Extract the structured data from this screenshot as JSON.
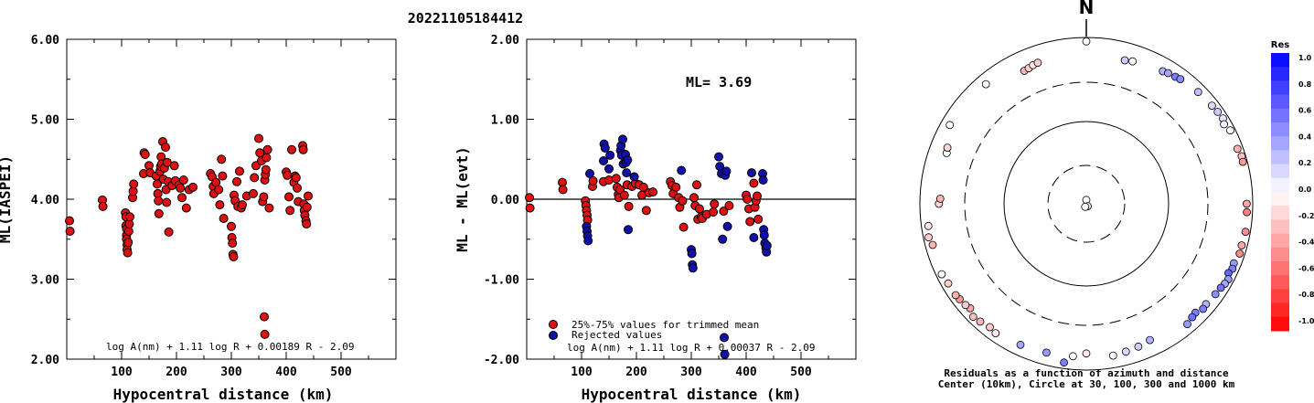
{
  "figure_title": "20221105184412",
  "chart_data": [
    {
      "type": "scatter",
      "panel": "left",
      "ylabel": "ML(IASPEI)",
      "xlabel": "Hypocentral distance (km)",
      "xlim": [
        0,
        600
      ],
      "ylim": [
        2.0,
        6.0
      ],
      "xticks": [
        "100",
        "200",
        "300",
        "400",
        "500"
      ],
      "yticks": [
        "2.00",
        "3.00",
        "4.00",
        "5.00",
        "6.00"
      ],
      "formula": "log A(nm) + 1.11 log R + 0.00189 R - 2.09",
      "color": "#dd1111",
      "points": [
        [
          5,
          3.73
        ],
        [
          6,
          3.6
        ],
        [
          65,
          3.99
        ],
        [
          66,
          3.91
        ],
        [
          107,
          3.83
        ],
        [
          108,
          3.78
        ],
        [
          108,
          3.67
        ],
        [
          109,
          3.63
        ],
        [
          109,
          3.55
        ],
        [
          109,
          3.5
        ],
        [
          110,
          3.43
        ],
        [
          110,
          3.37
        ],
        [
          111,
          3.33
        ],
        [
          112,
          3.46
        ],
        [
          113,
          3.6
        ],
        [
          114,
          3.69
        ],
        [
          115,
          3.78
        ],
        [
          120,
          4.02
        ],
        [
          121,
          4.1
        ],
        [
          122,
          4.19
        ],
        [
          140,
          4.32
        ],
        [
          141,
          4.58
        ],
        [
          143,
          4.56
        ],
        [
          150,
          4.42
        ],
        [
          152,
          4.33
        ],
        [
          163,
          4.29
        ],
        [
          165,
          4.19
        ],
        [
          166,
          4.07
        ],
        [
          167,
          3.98
        ],
        [
          168,
          3.82
        ],
        [
          170,
          4.35
        ],
        [
          171,
          4.41
        ],
        [
          172,
          4.53
        ],
        [
          173,
          4.44
        ],
        [
          175,
          4.72
        ],
        [
          176,
          4.25
        ],
        [
          178,
          4.39
        ],
        [
          180,
          4.65
        ],
        [
          181,
          4.12
        ],
        [
          182,
          3.96
        ],
        [
          183,
          4.46
        ],
        [
          185,
          4.22
        ],
        [
          186,
          3.59
        ],
        [
          192,
          4.17
        ],
        [
          196,
          4.42
        ],
        [
          198,
          4.23
        ],
        [
          205,
          4.18
        ],
        [
          207,
          4.14
        ],
        [
          210,
          4.02
        ],
        [
          213,
          4.24
        ],
        [
          218,
          3.89
        ],
        [
          223,
          4.12
        ],
        [
          230,
          4.15
        ],
        [
          262,
          4.32
        ],
        [
          265,
          4.28
        ],
        [
          267,
          4.16
        ],
        [
          268,
          4.07
        ],
        [
          272,
          4.21
        ],
        [
          277,
          4.12
        ],
        [
          279,
          3.93
        ],
        [
          282,
          4.5
        ],
        [
          284,
          4.29
        ],
        [
          286,
          3.76
        ],
        [
          300,
          3.66
        ],
        [
          301,
          3.52
        ],
        [
          302,
          3.45
        ],
        [
          303,
          3.31
        ],
        [
          304,
          3.28
        ],
        [
          305,
          4.05
        ],
        [
          307,
          3.98
        ],
        [
          310,
          4.22
        ],
        [
          312,
          3.91
        ],
        [
          315,
          4.35
        ],
        [
          318,
          3.89
        ],
        [
          320,
          3.93
        ],
        [
          328,
          4.04
        ],
        [
          340,
          4.07
        ],
        [
          342,
          4.27
        ],
        [
          345,
          4.42
        ],
        [
          350,
          4.76
        ],
        [
          352,
          4.58
        ],
        [
          355,
          4.48
        ],
        [
          357,
          3.97
        ],
        [
          359,
          4.03
        ],
        [
          361,
          4.24
        ],
        [
          362,
          4.31
        ],
        [
          363,
          4.37
        ],
        [
          364,
          4.52
        ],
        [
          366,
          4.62
        ],
        [
          369,
          3.89
        ],
        [
          360,
          2.53
        ],
        [
          361,
          2.31
        ],
        [
          400,
          4.34
        ],
        [
          402,
          4.3
        ],
        [
          405,
          4.03
        ],
        [
          407,
          3.86
        ],
        [
          410,
          4.62
        ],
        [
          414,
          4.21
        ],
        [
          416,
          4.29
        ],
        [
          418,
          4.27
        ],
        [
          420,
          4.14
        ],
        [
          422,
          3.97
        ],
        [
          430,
          4.67
        ],
        [
          431,
          4.62
        ],
        [
          432,
          3.94
        ],
        [
          433,
          3.86
        ],
        [
          434,
          3.8
        ],
        [
          436,
          3.73
        ],
        [
          437,
          3.69
        ],
        [
          438,
          3.9
        ],
        [
          440,
          4.04
        ]
      ]
    },
    {
      "type": "scatter",
      "panel": "middle",
      "ylabel": "ML - ML(evt)",
      "xlabel": "Hypocentral distance (km)",
      "xlim": [
        0,
        600
      ],
      "ylim": [
        -2.0,
        2.0
      ],
      "xticks": [
        "100",
        "200",
        "300",
        "400",
        "500"
      ],
      "yticks": [
        "-2.00",
        "-1.00",
        "0.00",
        "1.00",
        "2.00"
      ],
      "annotation": "ML= 3.69",
      "formula": "log A(nm) + 1.11 log R + 0.00037 R - 2.09",
      "legend": [
        {
          "label": "25%-75% values for trimmed mean",
          "color": "#dd1111"
        },
        {
          "label": "Rejected values",
          "color": "#1111aa"
        }
      ],
      "series": [
        {
          "name": "25%-75% values for trimmed mean",
          "color": "#dd1111",
          "points": [
            [
              5,
              0.02
            ],
            [
              6,
              -0.11
            ],
            [
              65,
              0.21
            ],
            [
              66,
              0.12
            ],
            [
              107,
              -0.02
            ],
            [
              108,
              -0.08
            ],
            [
              109,
              -0.14
            ],
            [
              110,
              -0.2
            ],
            [
              111,
              -0.26
            ],
            [
              120,
              0.16
            ],
            [
              121,
              0.23
            ],
            [
              140,
              0.22
            ],
            [
              150,
              0.24
            ],
            [
              163,
              0.26
            ],
            [
              165,
              0.15
            ],
            [
              167,
              0.06
            ],
            [
              168,
              0.02
            ],
            [
              170,
              0.12
            ],
            [
              178,
              0.05
            ],
            [
              183,
              0.18
            ],
            [
              186,
              -0.09
            ],
            [
              192,
              0.16
            ],
            [
              198,
              0.2
            ],
            [
              205,
              0.18
            ],
            [
              210,
              0.05
            ],
            [
              213,
              0.15
            ],
            [
              218,
              -0.14
            ],
            [
              223,
              0.08
            ],
            [
              230,
              0.09
            ],
            [
              262,
              0.22
            ],
            [
              265,
              0.17
            ],
            [
              267,
              0.07
            ],
            [
              272,
              0.15
            ],
            [
              277,
              0.02
            ],
            [
              279,
              -0.1
            ],
            [
              284,
              -0.02
            ],
            [
              286,
              -0.35
            ],
            [
              305,
              0.02
            ],
            [
              307,
              -0.08
            ],
            [
              310,
              0.18
            ],
            [
              312,
              -0.25
            ],
            [
              315,
              -0.12
            ],
            [
              318,
              -0.22
            ],
            [
              320,
              -0.24
            ],
            [
              328,
              -0.19
            ],
            [
              340,
              -0.16
            ],
            [
              342,
              -0.06
            ],
            [
              359,
              -0.15
            ],
            [
              369,
              -0.08
            ],
            [
              400,
              0.05
            ],
            [
              402,
              0.0
            ],
            [
              405,
              -0.12
            ],
            [
              407,
              -0.28
            ],
            [
              414,
              0.2
            ],
            [
              416,
              -0.1
            ],
            [
              418,
              -0.02
            ],
            [
              420,
              0.04
            ],
            [
              422,
              -0.25
            ]
          ]
        },
        {
          "name": "Rejected values",
          "color": "#1111aa",
          "points": [
            [
              109,
              -0.34
            ],
            [
              110,
              -0.4
            ],
            [
              111,
              -0.46
            ],
            [
              112,
              -0.52
            ],
            [
              115,
              0.32
            ],
            [
              140,
              0.48
            ],
            [
              141,
              0.69
            ],
            [
              143,
              0.64
            ],
            [
              150,
              0.38
            ],
            [
              152,
              0.55
            ],
            [
              171,
              0.61
            ],
            [
              172,
              0.67
            ],
            [
              173,
              0.55
            ],
            [
              175,
              0.75
            ],
            [
              176,
              0.44
            ],
            [
              180,
              0.56
            ],
            [
              181,
              0.46
            ],
            [
              182,
              0.33
            ],
            [
              184,
              0.49
            ],
            [
              185,
              -0.38
            ],
            [
              196,
              0.28
            ],
            [
              282,
              0.36
            ],
            [
              300,
              -0.63
            ],
            [
              301,
              -0.68
            ],
            [
              302,
              -0.82
            ],
            [
              303,
              -0.86
            ],
            [
              350,
              0.53
            ],
            [
              352,
              0.41
            ],
            [
              355,
              0.32
            ],
            [
              357,
              -0.5
            ],
            [
              360,
              -1.73
            ],
            [
              361,
              -1.94
            ],
            [
              362,
              0.3
            ],
            [
              364,
              0.35
            ],
            [
              366,
              -0.34
            ],
            [
              410,
              0.33
            ],
            [
              414,
              -0.48
            ],
            [
              430,
              0.32
            ],
            [
              431,
              0.24
            ],
            [
              432,
              -0.38
            ],
            [
              433,
              -0.45
            ],
            [
              434,
              -0.55
            ],
            [
              436,
              -0.61
            ],
            [
              437,
              -0.66
            ],
            [
              438,
              -0.58
            ]
          ]
        }
      ]
    },
    {
      "type": "polar",
      "panel": "right",
      "north_label": "N",
      "caption_line1": "Residuals as a function of azimuth and distance",
      "caption_line2": "Center (10km), Circle at 30, 100, 300 and 1000 km",
      "colorbar_title": "Res",
      "colorbar_ticks": [
        "1.0",
        "0.8",
        "0.6",
        "0.4",
        "0.2",
        "0.0",
        "-0.2",
        "-0.4",
        "-0.6",
        "-0.8",
        "-1.0"
      ],
      "rings": [
        30,
        100,
        300,
        1000
      ],
      "points": [
        [
          0,
          900,
          0.0
        ],
        [
          15,
          620,
          0.2
        ],
        [
          18,
          640,
          0.0
        ],
        [
          30,
          700,
          0.3
        ],
        [
          32,
          720,
          0.35
        ],
        [
          35,
          740,
          0.5
        ],
        [
          37,
          760,
          0.45
        ],
        [
          45,
          800,
          0.25
        ],
        [
          52,
          830,
          0.15
        ],
        [
          55,
          850,
          0.2
        ],
        [
          58,
          870,
          0.1
        ],
        [
          60,
          820,
          0.05
        ],
        [
          63,
          880,
          0.0
        ],
        [
          70,
          860,
          -0.3
        ],
        [
          73,
          900,
          -0.25
        ],
        [
          75,
          890,
          -0.4
        ],
        [
          90,
          850,
          -0.35
        ],
        [
          93,
          860,
          -0.5
        ],
        [
          100,
          880,
          -0.45
        ],
        [
          105,
          860,
          -0.35
        ],
        [
          108,
          870,
          -0.45
        ],
        [
          112,
          820,
          0.4
        ],
        [
          114,
          840,
          0.5
        ],
        [
          116,
          800,
          0.6
        ],
        [
          118,
          860,
          0.4
        ],
        [
          120,
          840,
          0.35
        ],
        [
          122,
          810,
          0.55
        ],
        [
          125,
          790,
          0.45
        ],
        [
          130,
          760,
          0.3
        ],
        [
          132,
          780,
          0.5
        ],
        [
          135,
          720,
          0.5
        ],
        [
          137,
          740,
          0.55
        ],
        [
          140,
          780,
          0.4
        ],
        [
          155,
          650,
          0.3
        ],
        [
          160,
          680,
          0.2
        ],
        [
          165,
          700,
          0.15
        ],
        [
          170,
          720,
          0.0
        ],
        [
          180,
          640,
          -0.1
        ],
        [
          185,
          700,
          0.0
        ],
        [
          188,
          850,
          0.5
        ],
        [
          195,
          720,
          0.4
        ],
        [
          205,
          750,
          0.35
        ],
        [
          215,
          800,
          -0.1
        ],
        [
          218,
          770,
          -0.2
        ],
        [
          222,
          810,
          -0.3
        ],
        [
          225,
          840,
          -0.25
        ],
        [
          228,
          760,
          -0.35
        ],
        [
          230,
          790,
          -0.2
        ],
        [
          233,
          810,
          -0.4
        ],
        [
          235,
          830,
          -0.3
        ],
        [
          240,
          830,
          -0.2
        ],
        [
          244,
          860,
          0.0
        ],
        [
          255,
          820,
          -0.3
        ],
        [
          258,
          870,
          -0.2
        ],
        [
          262,
          830,
          -0.1
        ],
        [
          270,
          600,
          -0.15
        ],
        [
          272,
          580,
          -0.3
        ],
        [
          290,
          620,
          0.0
        ],
        [
          292,
          640,
          -0.15
        ],
        [
          300,
          790,
          0.0
        ],
        [
          320,
          760,
          0.0
        ],
        [
          335,
          590,
          -0.3
        ],
        [
          337,
          600,
          -0.2
        ],
        [
          339,
          620,
          -0.1
        ],
        [
          341,
          630,
          -0.2
        ],
        [
          0,
          30,
          0.0
        ],
        [
          150,
          20,
          -0.1
        ],
        [
          200,
          25,
          0.0
        ]
      ]
    }
  ]
}
